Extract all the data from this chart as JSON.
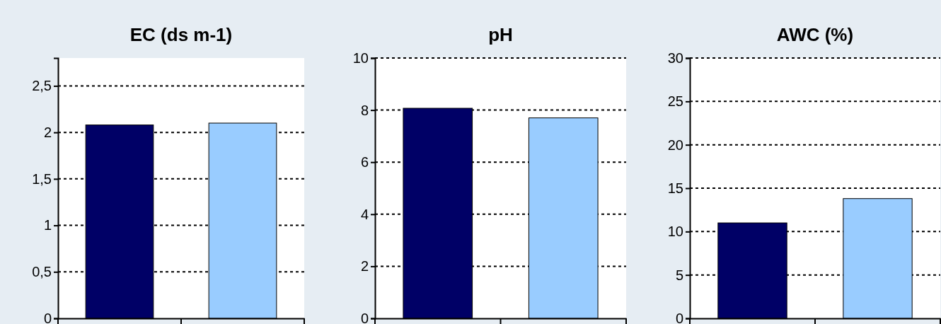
{
  "chart_data": [
    {
      "type": "bar",
      "title": "EC (ds m-1)",
      "categories": [
        null,
        null
      ],
      "values": [
        2.08,
        2.1
      ],
      "colors": [
        "#000066",
        "#99ccff"
      ],
      "ylim": [
        0,
        2.8
      ],
      "yticks": [
        0,
        {
          "value": 0.5,
          "label": "0,5"
        },
        1,
        {
          "value": 1.5,
          "label": "1,5"
        },
        2,
        {
          "value": 2.5,
          "label": "2,5"
        }
      ],
      "grid": "y"
    },
    {
      "type": "bar",
      "title": "pH",
      "categories": [
        null,
        null
      ],
      "values": [
        8.07,
        7.7
      ],
      "colors": [
        "#000066",
        "#99ccff"
      ],
      "ylim": [
        0,
        10
      ],
      "yticks": [
        0,
        2,
        4,
        6,
        8,
        10
      ],
      "grid": "y"
    },
    {
      "type": "bar",
      "title": "AWC (%)",
      "categories": [
        null,
        null
      ],
      "values": [
        11.0,
        13.8
      ],
      "colors": [
        "#000066",
        "#99ccff"
      ],
      "ylim": [
        0,
        30
      ],
      "yticks": [
        0,
        5,
        10,
        15,
        20,
        25,
        30
      ],
      "grid": "y"
    }
  ]
}
